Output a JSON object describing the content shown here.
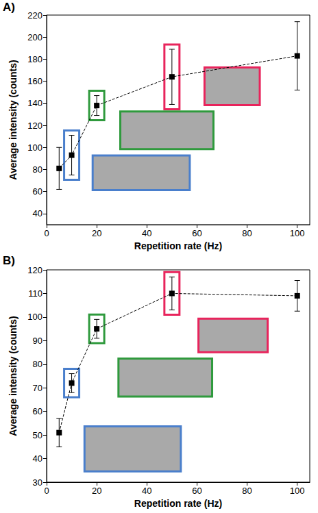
{
  "chart_data": [
    {
      "type": "scatter",
      "label": "A)",
      "x": [
        5,
        10,
        20,
        50,
        100
      ],
      "values": [
        81,
        93,
        138,
        164,
        183
      ],
      "errors": [
        19,
        18,
        9,
        25,
        31
      ],
      "x_label": "Repetition rate (Hz)",
      "y_label": "Average intensity (counts)",
      "xlim": [
        0,
        105
      ],
      "xticks": [
        0,
        20,
        40,
        60,
        80,
        100
      ],
      "ylim": [
        30,
        220
      ],
      "yticks": [
        40,
        60,
        80,
        100,
        120,
        140,
        160,
        180,
        200,
        220
      ],
      "marker": "square",
      "line_style": "dashed",
      "color": "#000000",
      "grid": false,
      "highlights": [
        {
          "x": 10,
          "color": "#4a7fcc"
        },
        {
          "x": 20,
          "color": "#2f9a3d"
        },
        {
          "x": 50,
          "color": "#e8245c"
        }
      ]
    },
    {
      "type": "scatter",
      "label": "B)",
      "x": [
        5,
        10,
        20,
        50,
        100
      ],
      "values": [
        51,
        72,
        95,
        110,
        109
      ],
      "errors": [
        6,
        4,
        4,
        7,
        6.5
      ],
      "x_label": "Repetition rate (Hz)",
      "y_label": "Average intensity (counts)",
      "xlim": [
        0,
        105
      ],
      "xticks": [
        0,
        20,
        40,
        60,
        80,
        100
      ],
      "ylim": [
        30,
        120
      ],
      "yticks": [
        30,
        40,
        50,
        60,
        70,
        80,
        90,
        100,
        110,
        120
      ],
      "marker": "square",
      "line_style": "dashed",
      "color": "#000000",
      "grid": false,
      "highlights": [
        {
          "x": 10,
          "color": "#4a7fcc"
        },
        {
          "x": 20,
          "color": "#2f9a3d"
        },
        {
          "x": 50,
          "color": "#e8245c"
        }
      ]
    }
  ]
}
